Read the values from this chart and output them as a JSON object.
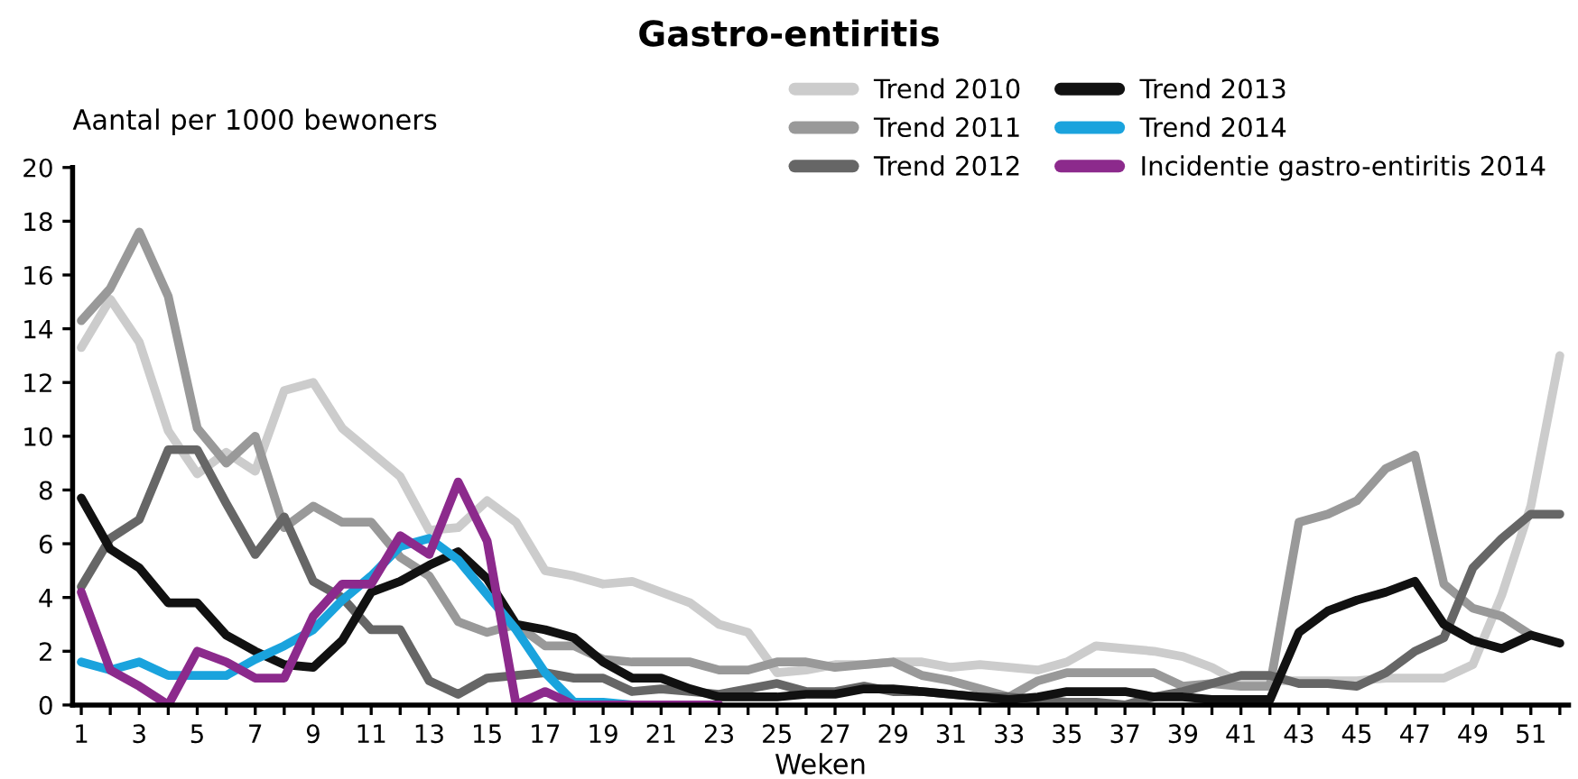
{
  "chart_data": {
    "type": "line",
    "title": "Gastro-entiritis",
    "ylabel": "Aantal per 1000 bewoners",
    "xlabel": "Weken",
    "x": [
      1,
      2,
      3,
      4,
      5,
      6,
      7,
      8,
      9,
      10,
      11,
      12,
      13,
      14,
      15,
      16,
      17,
      18,
      19,
      20,
      21,
      22,
      23,
      24,
      25,
      26,
      27,
      28,
      29,
      30,
      31,
      32,
      33,
      34,
      35,
      36,
      37,
      38,
      39,
      40,
      41,
      42,
      43,
      44,
      45,
      46,
      47,
      48,
      49,
      50,
      51,
      52
    ],
    "xlim": [
      0.7,
      52.3
    ],
    "xticks": [
      1,
      {
        "value": 2,
        "label": null
      },
      3,
      {
        "value": 4,
        "label": null
      },
      5,
      {
        "value": 6,
        "label": null
      },
      7,
      {
        "value": 8,
        "label": null
      },
      9,
      {
        "value": 10,
        "label": null
      },
      11,
      {
        "value": 12,
        "label": null
      },
      13,
      {
        "value": 14,
        "label": null
      },
      15,
      {
        "value": 16,
        "label": null
      },
      17,
      {
        "value": 18,
        "label": null
      },
      19,
      {
        "value": 20,
        "label": null
      },
      21,
      {
        "value": 22,
        "label": null
      },
      23,
      {
        "value": 24,
        "label": null
      },
      25,
      {
        "value": 26,
        "label": null
      },
      27,
      {
        "value": 28,
        "label": null
      },
      29,
      {
        "value": 30,
        "label": null
      },
      31,
      {
        "value": 32,
        "label": null
      },
      33,
      {
        "value": 34,
        "label": null
      },
      35,
      {
        "value": 36,
        "label": null
      },
      37,
      {
        "value": 38,
        "label": null
      },
      39,
      {
        "value": 40,
        "label": null
      },
      41,
      {
        "value": 42,
        "label": null
      },
      43,
      {
        "value": 44,
        "label": null
      },
      45,
      {
        "value": 46,
        "label": null
      },
      47,
      {
        "value": 48,
        "label": null
      },
      49,
      {
        "value": 50,
        "label": null
      },
      51,
      {
        "value": 52,
        "label": null
      }
    ],
    "ylim": [
      0,
      20
    ],
    "yticks": [
      0,
      2,
      4,
      6,
      8,
      10,
      12,
      14,
      16,
      18,
      20
    ],
    "grid": false,
    "legend": "top right",
    "marker": "none",
    "line_style": "solid",
    "series": [
      {
        "name": "Trend 2010",
        "color": "#cccccc",
        "values": [
          13.3,
          15.1,
          13.5,
          10.2,
          8.6,
          9.4,
          8.7,
          11.7,
          12.0,
          10.3,
          9.4,
          8.5,
          6.5,
          6.6,
          7.6,
          6.8,
          5.0,
          4.8,
          4.5,
          4.6,
          4.2,
          3.8,
          3.0,
          2.7,
          1.2,
          1.3,
          1.5,
          1.5,
          1.6,
          1.6,
          1.4,
          1.5,
          1.4,
          1.3,
          1.6,
          2.2,
          2.1,
          2.0,
          1.8,
          1.4,
          0.8,
          0.9,
          0.9,
          0.9,
          0.9,
          1.0,
          1.0,
          1.0,
          1.5,
          4.1,
          7.4,
          13.0
        ]
      },
      {
        "name": "Trend 2011",
        "color": "#999999",
        "values": [
          14.3,
          15.5,
          17.6,
          15.2,
          10.3,
          9.0,
          10.0,
          6.6,
          7.4,
          6.8,
          6.8,
          5.5,
          4.8,
          3.1,
          2.7,
          3.0,
          2.2,
          2.2,
          1.7,
          1.6,
          1.6,
          1.6,
          1.3,
          1.3,
          1.6,
          1.6,
          1.4,
          1.5,
          1.6,
          1.1,
          0.9,
          0.6,
          0.3,
          0.9,
          1.2,
          1.2,
          1.2,
          1.2,
          0.7,
          0.8,
          0.7,
          0.7,
          6.8,
          7.1,
          7.6,
          8.8,
          9.3,
          4.5,
          3.6,
          3.3,
          2.6,
          null
        ]
      },
      {
        "name": "Trend 2012",
        "color": "#666666",
        "values": [
          4.4,
          6.2,
          6.9,
          9.5,
          9.5,
          7.5,
          5.6,
          7.0,
          4.6,
          4.0,
          2.8,
          2.8,
          0.9,
          0.4,
          1.0,
          1.1,
          1.2,
          1.0,
          1.0,
          0.5,
          0.6,
          0.5,
          0.4,
          0.6,
          0.8,
          0.5,
          0.5,
          0.7,
          0.5,
          0.5,
          0.4,
          0.3,
          0.3,
          0.2,
          0.1,
          0.1,
          0.0,
          0.3,
          0.5,
          0.8,
          1.1,
          1.1,
          0.8,
          0.8,
          0.7,
          1.2,
          2.0,
          2.5,
          5.1,
          6.2,
          7.1,
          7.1
        ]
      },
      {
        "name": "Trend 2013",
        "color": "#111111",
        "values": [
          7.7,
          5.8,
          5.1,
          3.8,
          3.8,
          2.6,
          2.0,
          1.5,
          1.4,
          2.4,
          4.2,
          4.6,
          5.2,
          5.7,
          4.7,
          3.0,
          2.8,
          2.5,
          1.6,
          1.0,
          1.0,
          0.6,
          0.3,
          0.3,
          0.3,
          0.4,
          0.4,
          0.6,
          0.6,
          0.5,
          0.4,
          0.3,
          0.2,
          0.3,
          0.5,
          0.5,
          0.5,
          0.3,
          0.3,
          0.2,
          0.2,
          0.2,
          2.7,
          3.5,
          3.9,
          4.2,
          4.6,
          3.0,
          2.4,
          2.1,
          2.6,
          2.3
        ]
      },
      {
        "name": "Trend 2014",
        "color": "#1aa3dd",
        "values": [
          1.6,
          1.3,
          1.6,
          1.1,
          1.1,
          1.1,
          1.7,
          2.2,
          2.8,
          3.9,
          4.8,
          5.9,
          6.2,
          5.4,
          4.1,
          2.8,
          1.2,
          0.1,
          0.1,
          0.0,
          0.0,
          null,
          null,
          null,
          null,
          null,
          null,
          null,
          null,
          null,
          null,
          null,
          null,
          null,
          null,
          null,
          null,
          null,
          null,
          null,
          null,
          null,
          null,
          null,
          null,
          null,
          null,
          null,
          null,
          null,
          null,
          null
        ]
      },
      {
        "name": "Incidentie gastro-entiritis 2014",
        "color": "#8c2a8c",
        "values": [
          4.2,
          1.3,
          0.7,
          0.0,
          2.0,
          1.6,
          1.0,
          1.0,
          3.3,
          4.5,
          4.5,
          6.3,
          5.6,
          8.3,
          6.1,
          0.0,
          0.5,
          0.0,
          0.0,
          0.0,
          0.0,
          0.0,
          0.0,
          null,
          null,
          null,
          null,
          null,
          null,
          null,
          null,
          null,
          null,
          null,
          null,
          null,
          null,
          null,
          null,
          null,
          null,
          null,
          null,
          null,
          null,
          null,
          null,
          null,
          null,
          null,
          null,
          null
        ]
      }
    ]
  }
}
